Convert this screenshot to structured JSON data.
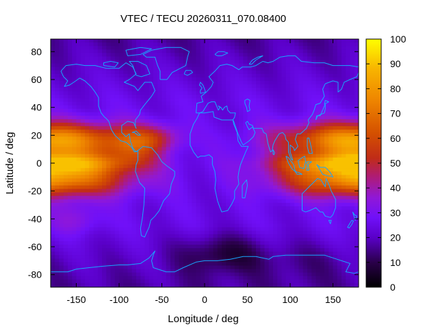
{
  "chart_data": {
    "type": "heatmap",
    "title": "VTEC / TECU 20260311_070.08400",
    "xlabel": "Longitude / deg",
    "ylabel": "Latitude / deg",
    "xlim": [
      -180,
      180
    ],
    "ylim": [
      -89,
      89
    ],
    "x_ticks": [
      -150,
      -100,
      -50,
      0,
      50,
      100,
      150
    ],
    "x_tick_labels": [
      "-150",
      "-100",
      "-50",
      "0",
      "50",
      "100",
      "150"
    ],
    "y_ticks": [
      80,
      60,
      40,
      20,
      0,
      -20,
      -40,
      -60,
      -80
    ],
    "y_tick_labels": [
      "80",
      "60",
      "40",
      "20",
      "0",
      "-20",
      "-40",
      "-60",
      "-80"
    ],
    "colorbar": {
      "range": [
        0,
        100
      ],
      "ticks": [
        100,
        90,
        80,
        70,
        60,
        50,
        40,
        30,
        20,
        10,
        0
      ],
      "tick_labels": [
        "100",
        "90",
        "80",
        "70",
        "60",
        "50",
        "40",
        "30",
        "20",
        "10",
        "0"
      ],
      "palette_stops": [
        {
          "value": 0,
          "color": "#000000"
        },
        {
          "value": 10,
          "color": "#2a004a"
        },
        {
          "value": 20,
          "color": "#5a00c8"
        },
        {
          "value": 28,
          "color": "#7010f8"
        },
        {
          "value": 36,
          "color": "#9018d8"
        },
        {
          "value": 45,
          "color": "#b01c70"
        },
        {
          "value": 52,
          "color": "#c02c18"
        },
        {
          "value": 62,
          "color": "#d45000"
        },
        {
          "value": 75,
          "color": "#ee8400"
        },
        {
          "value": 88,
          "color": "#f8b400"
        },
        {
          "value": 100,
          "color": "#ffff00"
        }
      ]
    },
    "field_features": {
      "background_vtec": 25,
      "high_latitude_vtec": 18,
      "min_vtec": 5,
      "max_vtec": 90,
      "ionospheric_anomaly_crests": [
        {
          "lon": -180,
          "lat": 15,
          "vtec": 85
        },
        {
          "lon": -180,
          "lat": -12,
          "vtec": 82
        },
        {
          "lon": -140,
          "lat": 15,
          "vtec": 73
        },
        {
          "lon": -140,
          "lat": -12,
          "vtec": 70
        },
        {
          "lon": -90,
          "lat": 10,
          "vtec": 55
        },
        {
          "lon": -70,
          "lat": 18,
          "vtec": 48
        },
        {
          "lon": 120,
          "lat": 18,
          "vtec": 70
        },
        {
          "lon": 150,
          "lat": 18,
          "vtec": 78
        },
        {
          "lon": 180,
          "lat": 18,
          "vtec": 88
        },
        {
          "lon": 130,
          "lat": -12,
          "vtec": 60
        },
        {
          "lon": 170,
          "lat": -12,
          "vtec": 80
        }
      ],
      "low_region": {
        "lon": 15,
        "lat": -65,
        "vtec": 8
      }
    },
    "overlay": "coastlines",
    "coastline_color": "#18a8ff"
  }
}
